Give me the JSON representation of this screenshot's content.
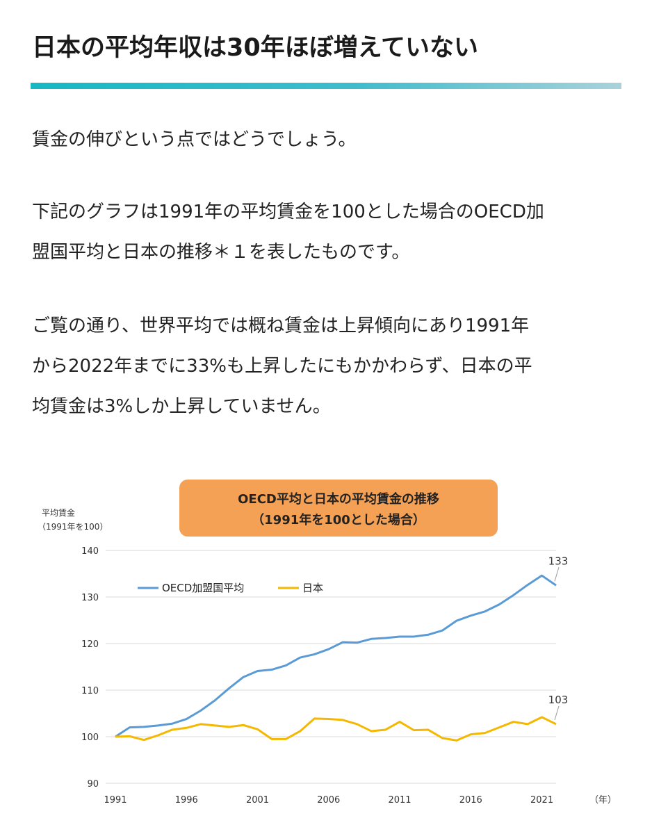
{
  "article": {
    "heading": "日本の平均年収は30年ほぼ増えていない",
    "para1": "賃金の伸びという点ではどうでしょう。",
    "para2_line1": "下記のグラフは1991年の平均賃金を100とした場合のOECD加",
    "para2_line2": "盟国平均と日本の推移＊１を表したものです。",
    "para3_line1": "ご覧の通り、世界平均では概ね賃金は上昇傾向にあり1991年",
    "para3_line2": "から2022年までに33%も上昇したにもかかわらず、日本の平",
    "para3_line3": "均賃金は3%しか上昇していません。"
  },
  "colors": {
    "accent_rule": "#16b8c4",
    "title_box": "#f4a155",
    "oecd": "#5b9bd5",
    "japan": "#f5b800"
  },
  "chart_data": {
    "type": "line",
    "title_line1": "OECD平均と日本の平均賃金の推移",
    "title_line2": "（1991年を100とした場合）",
    "ylabel_line1": "平均賃金",
    "ylabel_line2": "（1991年を100）",
    "xlabel": "（年）",
    "ylim": [
      90,
      140
    ],
    "yticks": [
      "90",
      "100",
      "110",
      "120",
      "130",
      "140"
    ],
    "xticks": [
      "1991",
      "1996",
      "2001",
      "2006",
      "2011",
      "2016",
      "2021"
    ],
    "xlim": [
      1991,
      2022
    ],
    "grid": true,
    "legend_position": "top-left",
    "series": [
      {
        "name": "OECD加盟国平均",
        "x": [
          1991,
          1992,
          1993,
          1994,
          1995,
          1996,
          1997,
          1998,
          1999,
          2000,
          2001,
          2002,
          2003,
          2004,
          2005,
          2006,
          2007,
          2008,
          2009,
          2010,
          2011,
          2012,
          2013,
          2014,
          2015,
          2016,
          2017,
          2018,
          2019,
          2020,
          2021,
          2022
        ],
        "values": [
          100,
          102,
          102.1,
          102.4,
          102.8,
          103.8,
          105.6,
          107.8,
          110.4,
          112.8,
          114.1,
          114.4,
          115.3,
          117,
          117.7,
          118.8,
          120.3,
          120.2,
          121,
          121.2,
          121.5,
          121.5,
          121.9,
          122.8,
          124.9,
          126,
          126.9,
          128.4,
          130.4,
          132.6,
          134.6,
          132.5
        ]
      },
      {
        "name": "日本",
        "x": [
          1991,
          1992,
          1993,
          1994,
          1995,
          1996,
          1997,
          1998,
          1999,
          2000,
          2001,
          2002,
          2003,
          2004,
          2005,
          2006,
          2007,
          2008,
          2009,
          2010,
          2011,
          2012,
          2013,
          2014,
          2015,
          2016,
          2017,
          2018,
          2019,
          2020,
          2021,
          2022
        ],
        "values": [
          100,
          100.1,
          99.3,
          100.3,
          101.5,
          101.9,
          102.7,
          102.4,
          102.1,
          102.5,
          101.6,
          99.5,
          99.5,
          101.2,
          103.9,
          103.8,
          103.6,
          102.7,
          101.2,
          101.5,
          103.2,
          101.4,
          101.5,
          99.7,
          99.2,
          100.5,
          100.8,
          102,
          103.2,
          102.7,
          104.2,
          102.7
        ]
      }
    ],
    "annotations": [
      {
        "text": "133",
        "year": 2022,
        "value": 132.5
      },
      {
        "text": "103",
        "year": 2022,
        "value": 102.7
      }
    ]
  }
}
